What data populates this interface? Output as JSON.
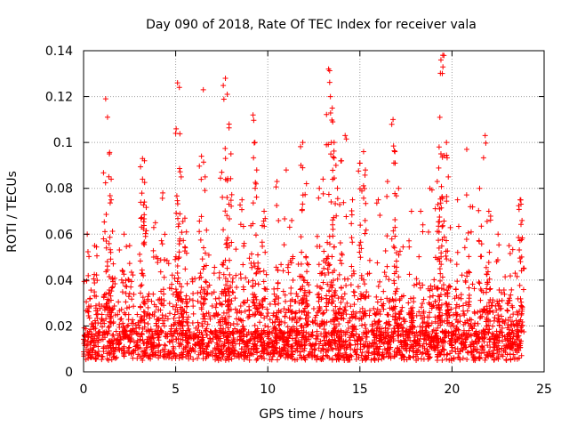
{
  "chart_data": {
    "type": "scatter",
    "title": "Day 090 of 2018, Rate Of TEC Index for receiver vala",
    "xlabel": "GPS time / hours",
    "ylabel": "ROTI / TECUs",
    "xlim": [
      0,
      25
    ],
    "ylim": [
      0,
      0.14
    ],
    "xticks": [
      0,
      5,
      10,
      15,
      20,
      25
    ],
    "yticks": [
      0,
      0.02,
      0.04,
      0.06,
      0.08,
      0.1,
      0.12,
      0.14
    ],
    "ytick_labels": [
      "0",
      "0.02",
      "0.04",
      "0.06",
      "0.08",
      "0.1",
      "0.12",
      "0.14"
    ],
    "grid": true,
    "marker": "+",
    "series": [
      {
        "name": "ROTI",
        "color": "#ff0000",
        "data_range": [
          0,
          23.8
        ],
        "baseline_range": [
          0.005,
          0.018
        ],
        "peaks": [
          {
            "x": 0.2,
            "y": 0.06
          },
          {
            "x": 0.6,
            "y": 0.055
          },
          {
            "x": 1.2,
            "y": 0.119
          },
          {
            "x": 1.3,
            "y": 0.111
          },
          {
            "x": 1.4,
            "y": 0.095
          },
          {
            "x": 1.5,
            "y": 0.084
          },
          {
            "x": 1.5,
            "y": 0.075
          },
          {
            "x": 2.2,
            "y": 0.06
          },
          {
            "x": 2.5,
            "y": 0.055
          },
          {
            "x": 3.2,
            "y": 0.093
          },
          {
            "x": 3.2,
            "y": 0.084
          },
          {
            "x": 3.3,
            "y": 0.074
          },
          {
            "x": 3.9,
            "y": 0.065
          },
          {
            "x": 4.3,
            "y": 0.078
          },
          {
            "x": 5.0,
            "y": 0.104
          },
          {
            "x": 5.1,
            "y": 0.126
          },
          {
            "x": 5.2,
            "y": 0.124
          },
          {
            "x": 5.3,
            "y": 0.085
          },
          {
            "x": 5.5,
            "y": 0.067
          },
          {
            "x": 6.4,
            "y": 0.094
          },
          {
            "x": 6.5,
            "y": 0.123
          },
          {
            "x": 6.6,
            "y": 0.085
          },
          {
            "x": 7.5,
            "y": 0.087
          },
          {
            "x": 7.7,
            "y": 0.128
          },
          {
            "x": 7.8,
            "y": 0.121
          },
          {
            "x": 7.9,
            "y": 0.108
          },
          {
            "x": 8.0,
            "y": 0.095
          },
          {
            "x": 8.6,
            "y": 0.075
          },
          {
            "x": 9.2,
            "y": 0.112
          },
          {
            "x": 9.3,
            "y": 0.1
          },
          {
            "x": 9.4,
            "y": 0.088
          },
          {
            "x": 9.8,
            "y": 0.07
          },
          {
            "x": 10.5,
            "y": 0.083
          },
          {
            "x": 11.0,
            "y": 0.088
          },
          {
            "x": 11.3,
            "y": 0.066
          },
          {
            "x": 11.8,
            "y": 0.09
          },
          {
            "x": 11.9,
            "y": 0.1
          },
          {
            "x": 12.1,
            "y": 0.082
          },
          {
            "x": 12.8,
            "y": 0.08
          },
          {
            "x": 13.0,
            "y": 0.084
          },
          {
            "x": 13.3,
            "y": 0.132
          },
          {
            "x": 13.4,
            "y": 0.12
          },
          {
            "x": 13.5,
            "y": 0.115
          },
          {
            "x": 13.6,
            "y": 0.1
          },
          {
            "x": 13.7,
            "y": 0.09
          },
          {
            "x": 14.0,
            "y": 0.092
          },
          {
            "x": 14.2,
            "y": 0.103
          },
          {
            "x": 14.6,
            "y": 0.075
          },
          {
            "x": 15.0,
            "y": 0.091
          },
          {
            "x": 15.2,
            "y": 0.096
          },
          {
            "x": 15.3,
            "y": 0.088
          },
          {
            "x": 16.0,
            "y": 0.075
          },
          {
            "x": 16.5,
            "y": 0.083
          },
          {
            "x": 16.8,
            "y": 0.11
          },
          {
            "x": 16.9,
            "y": 0.096
          },
          {
            "x": 17.1,
            "y": 0.08
          },
          {
            "x": 17.8,
            "y": 0.07
          },
          {
            "x": 18.3,
            "y": 0.07
          },
          {
            "x": 18.8,
            "y": 0.08
          },
          {
            "x": 19.2,
            "y": 0.083
          },
          {
            "x": 19.3,
            "y": 0.098
          },
          {
            "x": 19.4,
            "y": 0.095
          },
          {
            "x": 19.4,
            "y": 0.136
          },
          {
            "x": 19.5,
            "y": 0.138
          },
          {
            "x": 19.7,
            "y": 0.1
          },
          {
            "x": 19.8,
            "y": 0.085
          },
          {
            "x": 20.3,
            "y": 0.075
          },
          {
            "x": 20.8,
            "y": 0.097
          },
          {
            "x": 21.0,
            "y": 0.072
          },
          {
            "x": 21.5,
            "y": 0.08
          },
          {
            "x": 21.8,
            "y": 0.103
          },
          {
            "x": 22.0,
            "y": 0.07
          },
          {
            "x": 22.5,
            "y": 0.06
          },
          {
            "x": 23.1,
            "y": 0.055
          },
          {
            "x": 23.7,
            "y": 0.075
          },
          {
            "x": 23.8,
            "y": 0.066
          }
        ]
      }
    ]
  }
}
